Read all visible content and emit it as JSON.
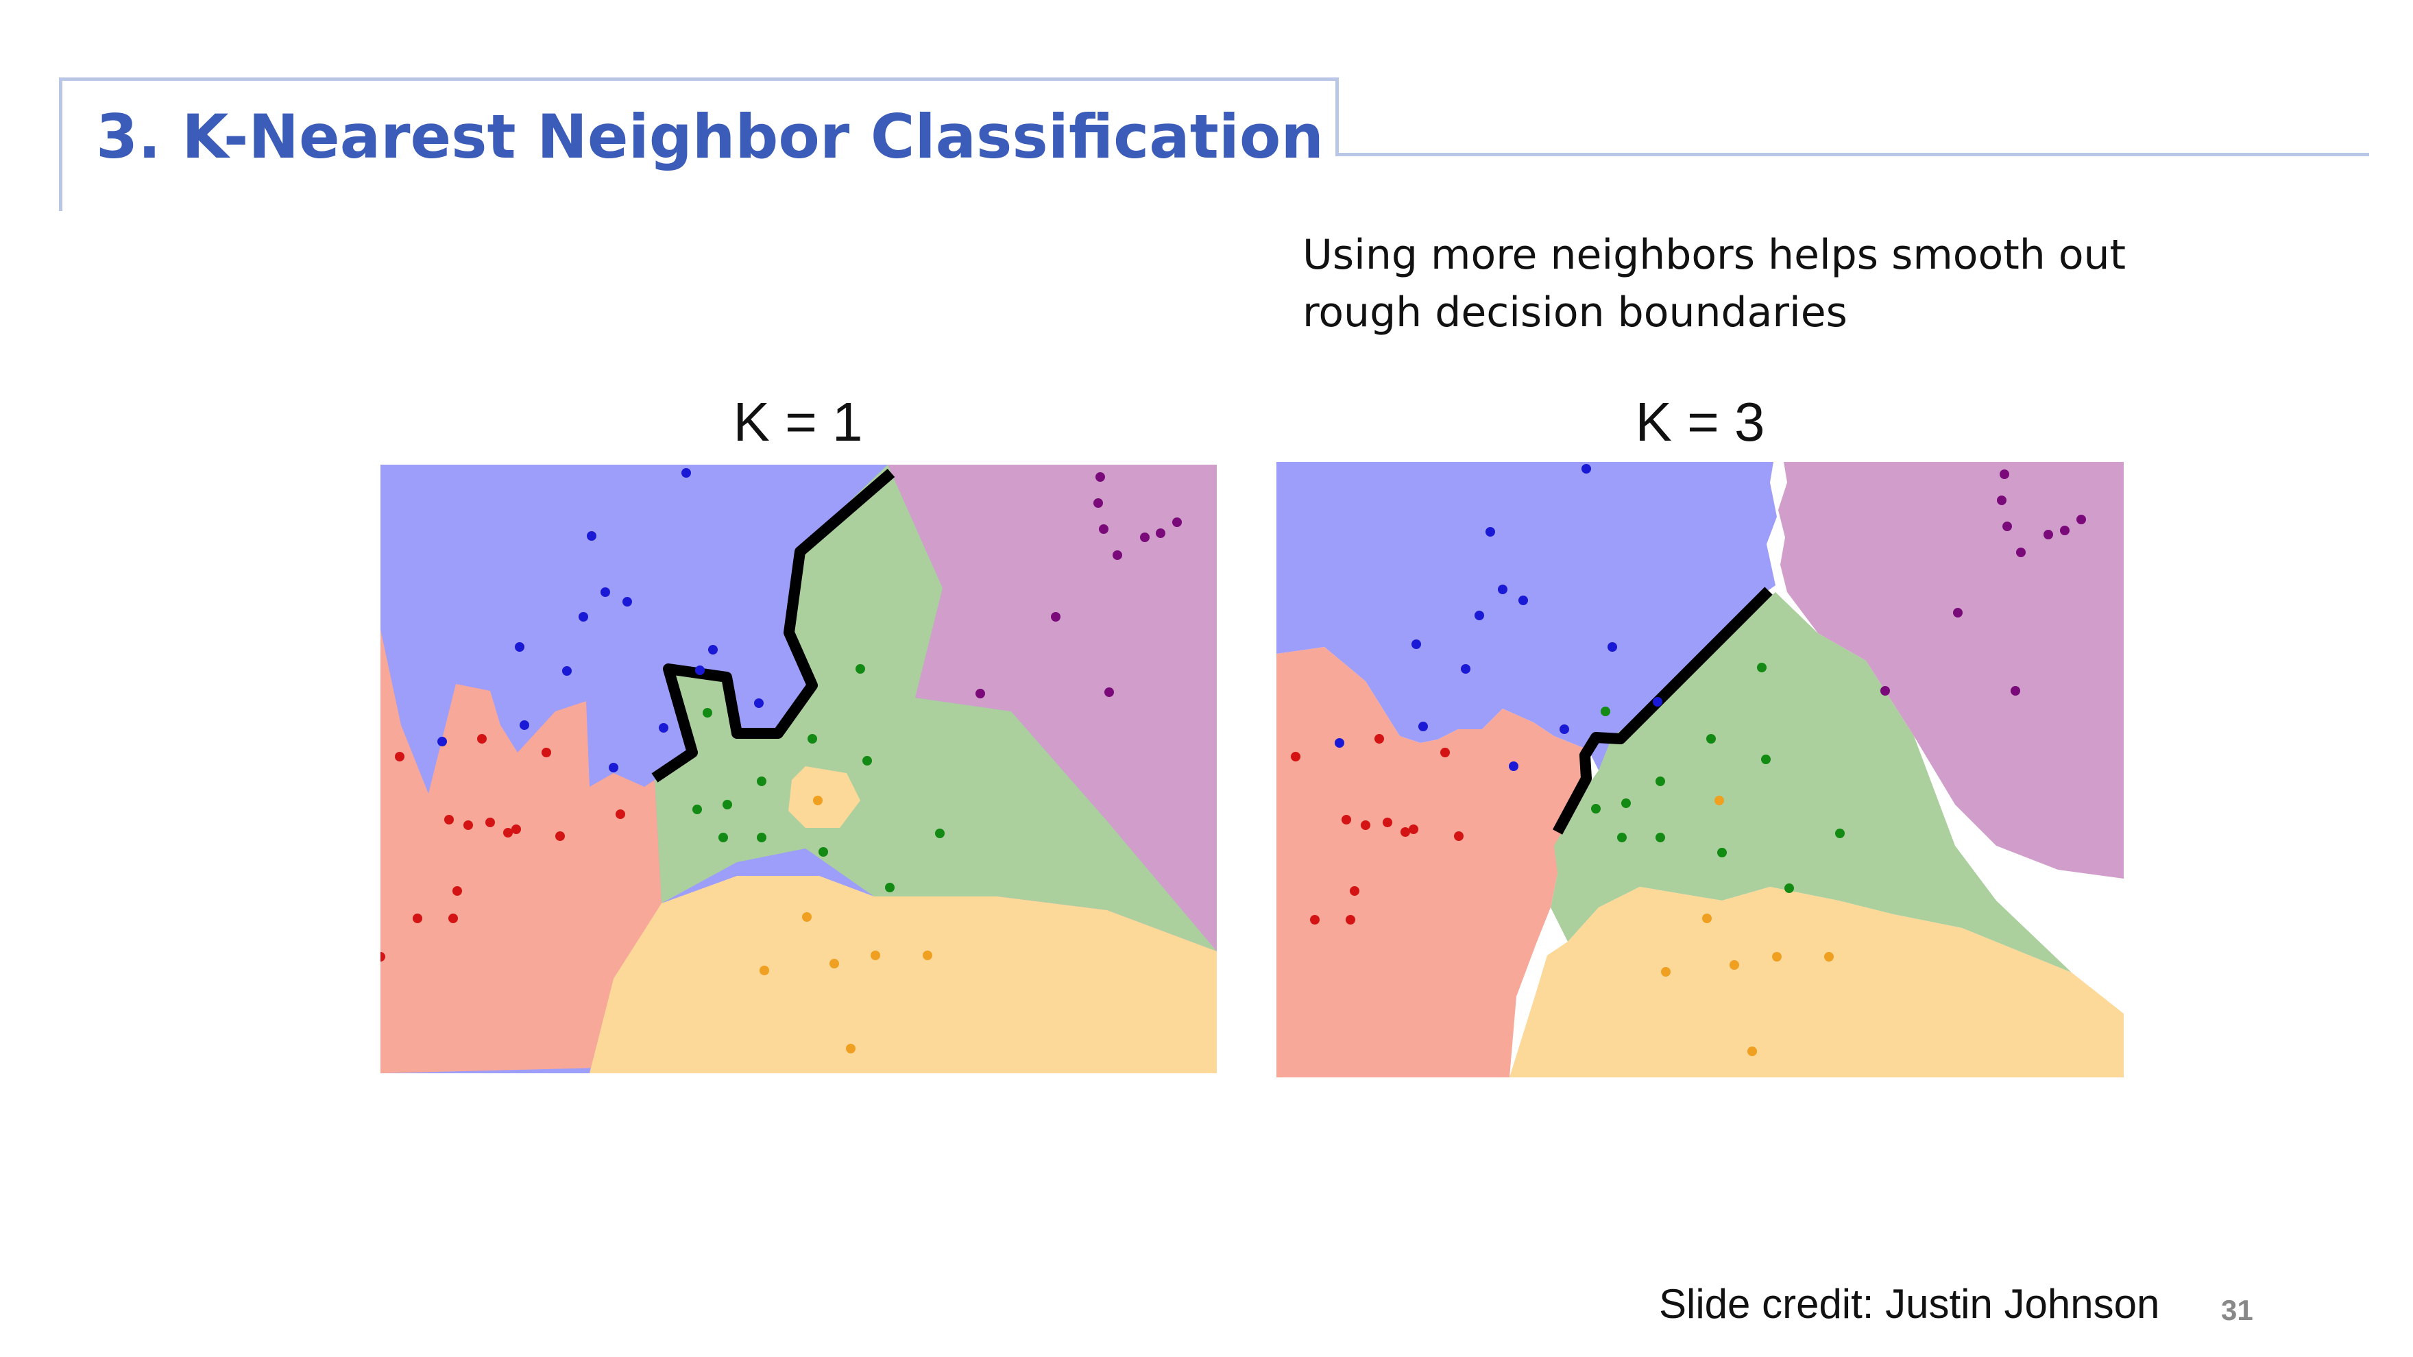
{
  "slide": {
    "title": "3. K-Nearest Neighbor Classification",
    "caption_lines": [
      "Using more neighbors helps smooth out",
      "rough decision boundaries"
    ],
    "credit": "Slide credit: Justin Johnson",
    "page_number": "31"
  },
  "colors": {
    "title": "#3b5cb8",
    "frame": "#b9c6e6",
    "region_blue": "#9d9dfa",
    "region_purple": "#d19ecc",
    "region_green": "#abcf9d",
    "region_red": "#f8a899",
    "region_orange": "#fcd899",
    "point_blue": "#1a1ad6",
    "point_purple": "#7a0a7a",
    "point_green": "#138a13",
    "point_red": "#d41414",
    "point_orange": "#f0a020"
  },
  "plots": [
    {
      "label": "K = 1"
    },
    {
      "label": "K = 3"
    }
  ]
}
